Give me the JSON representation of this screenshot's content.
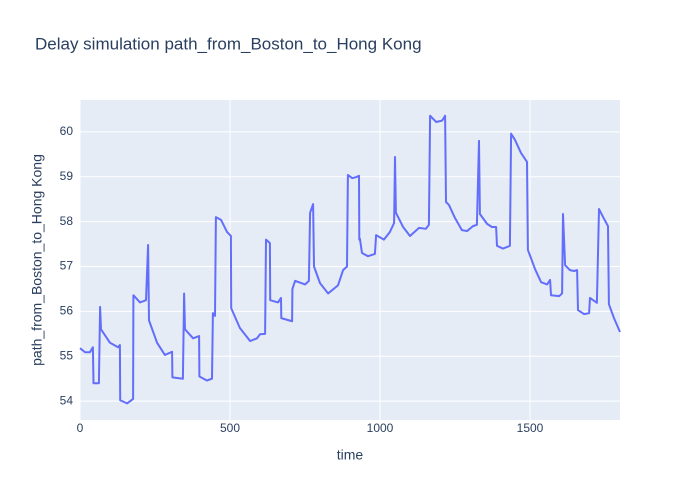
{
  "chart_data": {
    "type": "line",
    "title": "Delay simulation path_from_Boston_to_Hong Kong",
    "x_label": "time",
    "y_label": "path_from_Boston_to_Hong Kong",
    "color": "#636efa",
    "grid": true,
    "xlim": [
      0,
      1800
    ],
    "xticks": [
      0,
      500,
      1000,
      1500
    ],
    "ylim": [
      53.58,
      60.71
    ],
    "yticks": [
      54,
      55,
      56,
      57,
      58,
      59,
      60
    ],
    "x": [
      0,
      17,
      33,
      43,
      45,
      63,
      67,
      70,
      100,
      127,
      133,
      134,
      157,
      177,
      178,
      200,
      220,
      227,
      230,
      257,
      283,
      307,
      308,
      343,
      347,
      350,
      377,
      397,
      398,
      423,
      440,
      443,
      450,
      453,
      470,
      490,
      503,
      504,
      533,
      567,
      590,
      600,
      617,
      620,
      633,
      634,
      660,
      670,
      671,
      707,
      708,
      717,
      750,
      763,
      767,
      777,
      780,
      800,
      827,
      860,
      877,
      890,
      893,
      907,
      920,
      930,
      931,
      933,
      940,
      960,
      983,
      987,
      1013,
      1033,
      1047,
      1050,
      1053,
      1077,
      1100,
      1130,
      1153,
      1163,
      1167,
      1187,
      1207,
      1217,
      1220,
      1230,
      1250,
      1273,
      1290,
      1310,
      1323,
      1330,
      1333,
      1357,
      1373,
      1387,
      1390,
      1410,
      1433,
      1437,
      1450,
      1470,
      1490,
      1493,
      1517,
      1537,
      1557,
      1567,
      1570,
      1597,
      1607,
      1610,
      1617,
      1633,
      1647,
      1657,
      1660,
      1680,
      1697,
      1700,
      1723,
      1730,
      1747,
      1760,
      1763,
      1780,
      1800
    ],
    "values": [
      55.18,
      55.09,
      55.09,
      55.2,
      54.4,
      54.4,
      56.1,
      55.6,
      55.3,
      55.2,
      55.25,
      54.02,
      53.95,
      54.05,
      56.36,
      56.2,
      56.25,
      57.48,
      55.8,
      55.3,
      55.03,
      55.1,
      54.53,
      54.5,
      56.4,
      55.6,
      55.4,
      55.45,
      54.55,
      54.46,
      54.5,
      55.96,
      55.9,
      58.1,
      58.04,
      57.77,
      57.68,
      56.07,
      55.63,
      55.34,
      55.4,
      55.49,
      55.5,
      57.6,
      57.52,
      56.25,
      56.2,
      56.3,
      55.85,
      55.78,
      56.5,
      56.68,
      56.6,
      56.68,
      58.2,
      58.39,
      57.0,
      56.63,
      56.4,
      56.58,
      56.92,
      57.0,
      59.04,
      58.97,
      58.99,
      59.02,
      57.6,
      57.62,
      57.3,
      57.23,
      57.28,
      57.7,
      57.6,
      57.77,
      57.97,
      59.44,
      58.2,
      57.88,
      57.68,
      57.86,
      57.84,
      57.93,
      60.36,
      60.22,
      60.25,
      60.36,
      58.44,
      58.37,
      58.08,
      57.81,
      57.79,
      57.9,
      57.93,
      59.8,
      58.17,
      57.95,
      57.88,
      57.88,
      57.46,
      57.4,
      57.46,
      59.96,
      59.82,
      59.53,
      59.33,
      57.37,
      56.94,
      56.65,
      56.6,
      56.7,
      56.36,
      56.34,
      56.4,
      58.17,
      57.03,
      56.92,
      56.9,
      56.92,
      56.03,
      55.94,
      55.96,
      56.3,
      56.19,
      58.28,
      58.06,
      57.9,
      56.16,
      55.85,
      55.54
    ]
  }
}
